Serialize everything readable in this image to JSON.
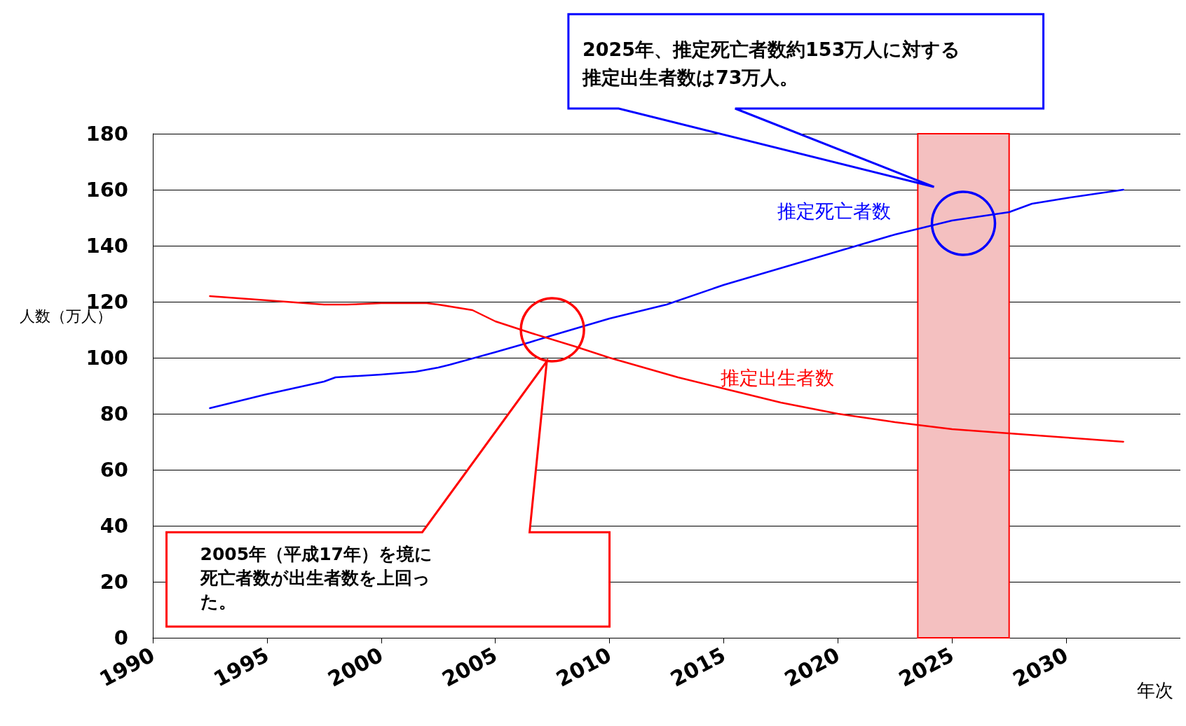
{
  "chart_data": {
    "type": "line",
    "xlabel": "年次",
    "ylabel": "人数（万人）",
    "xlim": [
      1990,
      2035
    ],
    "xticks": [
      1990,
      1995,
      2000,
      2005,
      2010,
      2015,
      2020,
      2025,
      2030
    ],
    "ylim": [
      0,
      180
    ],
    "yticks": [
      0,
      20,
      40,
      60,
      80,
      100,
      120,
      140,
      160,
      180
    ],
    "grid": "y",
    "legend": false,
    "marker": "none",
    "line_style": "solid",
    "series": [
      {
        "name": "推定死亡者数",
        "color": "#0000ff",
        "x": [
          1992.5,
          1995,
          1997.5,
          1998,
          2000,
          2001.5,
          2002.5,
          2003,
          2005,
          2006.5,
          2007.5,
          2010,
          2012.5,
          2015,
          2017.5,
          2020,
          2022.5,
          2025,
          2027.5,
          2028.5,
          2030,
          2032.5
        ],
        "values": [
          82,
          87,
          91.5,
          93,
          94,
          95,
          96.5,
          97.5,
          102,
          105.5,
          108,
          114,
          119,
          126,
          132,
          138,
          144,
          149,
          152,
          155,
          157,
          160
        ]
      },
      {
        "name": "推定出生者数",
        "color": "#ff0000",
        "x": [
          1992.5,
          1995,
          1997.5,
          1998.5,
          2000,
          2002,
          2002.5,
          2004,
          2005,
          2006.5,
          2008.5,
          2010,
          2011.5,
          2013,
          2015,
          2017.5,
          2020,
          2022.5,
          2025,
          2027.5,
          2030,
          2032.5
        ],
        "values": [
          122,
          120.5,
          119,
          119,
          119.5,
          119.5,
          119,
          117,
          113,
          109,
          104,
          100,
          96.5,
          93,
          89,
          84,
          80,
          77,
          74.5,
          73,
          71.5,
          70
        ]
      }
    ],
    "bands": [
      {
        "axis": "x",
        "from": 2023.5,
        "to": 2027.5,
        "color": "#f4c0c0"
      }
    ],
    "annotations": [
      "2025年、推定死亡者数約153万人に対する推定出生者数は73万人。",
      "2005年（平成17年）を境に死亡者数が出生者数を上回った。"
    ]
  }
}
